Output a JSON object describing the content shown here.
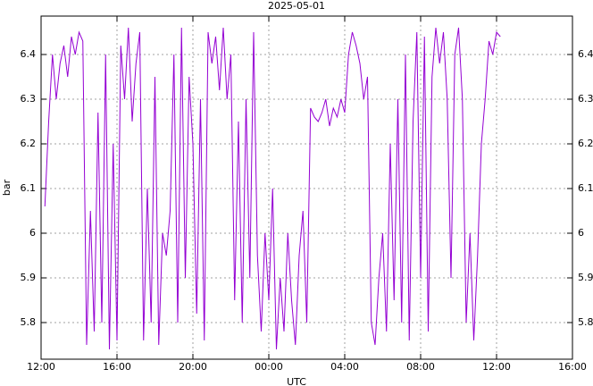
{
  "chart_data": {
    "type": "line",
    "title": "2025-05-01",
    "xlabel": "UTC",
    "ylabel": "bar",
    "xlim": [
      0,
      28
    ],
    "ylim": [
      5.718,
      6.486
    ],
    "xticks": [
      {
        "value": 0,
        "label": "12:00"
      },
      {
        "value": 4,
        "label": "16:00"
      },
      {
        "value": 8,
        "label": "20:00"
      },
      {
        "value": 12,
        "label": "00:00"
      },
      {
        "value": 16,
        "label": "04:00"
      },
      {
        "value": 20,
        "label": "08:00"
      },
      {
        "value": 24,
        "label": "12:00"
      },
      {
        "value": 28,
        "label": "16:00"
      }
    ],
    "yticks": [
      5.8,
      5.9,
      6,
      6.1,
      6.2,
      6.3,
      6.4
    ],
    "grid": true,
    "x": [
      0.2,
      0.4,
      0.6,
      0.8,
      1.0,
      1.2,
      1.4,
      1.6,
      1.8,
      2.0,
      2.2,
      2.4,
      2.6,
      2.8,
      3.0,
      3.2,
      3.4,
      3.6,
      3.8,
      4.0,
      4.2,
      4.4,
      4.6,
      4.8,
      5.0,
      5.2,
      5.4,
      5.6,
      5.8,
      6.0,
      6.2,
      6.4,
      6.6,
      6.8,
      7.0,
      7.2,
      7.4,
      7.6,
      7.8,
      8.0,
      8.2,
      8.4,
      8.6,
      8.8,
      9.0,
      9.2,
      9.4,
      9.6,
      9.8,
      10.0,
      10.2,
      10.4,
      10.6,
      10.8,
      11.0,
      11.2,
      11.4,
      11.6,
      11.8,
      12.0,
      12.2,
      12.4,
      12.6,
      12.8,
      13.0,
      13.2,
      13.4,
      13.6,
      13.8,
      14.0,
      14.2,
      14.4,
      14.6,
      14.8,
      15.0,
      15.2,
      15.4,
      15.6,
      15.8,
      16.0,
      16.2,
      16.4,
      16.6,
      16.8,
      17.0,
      17.2,
      17.4,
      17.6,
      17.8,
      18.0,
      18.2,
      18.4,
      18.6,
      18.8,
      19.0,
      19.2,
      19.4,
      19.6,
      19.8,
      20.0,
      20.2,
      20.4,
      20.6,
      20.8,
      21.0,
      21.2,
      21.4,
      21.6,
      21.8,
      22.0,
      22.2,
      22.4,
      22.6,
      22.8,
      23.0,
      23.2,
      23.4,
      23.6,
      23.8,
      24.0,
      24.2
    ],
    "series": [
      {
        "color": "#9400d3",
        "values": [
          6.06,
          6.25,
          6.4,
          6.3,
          6.38,
          6.42,
          6.35,
          6.44,
          6.4,
          6.45,
          6.43,
          5.75,
          6.05,
          5.78,
          6.27,
          5.8,
          6.4,
          5.74,
          6.2,
          5.76,
          6.42,
          6.3,
          6.46,
          6.25,
          6.38,
          6.45,
          5.76,
          6.1,
          5.8,
          6.35,
          5.75,
          6.0,
          5.95,
          6.05,
          6.4,
          5.8,
          6.46,
          5.9,
          6.35,
          6.2,
          5.82,
          6.3,
          5.76,
          6.45,
          6.38,
          6.44,
          6.32,
          6.46,
          6.3,
          6.4,
          5.85,
          6.25,
          5.8,
          6.3,
          5.9,
          6.45,
          5.95,
          5.78,
          6.0,
          5.85,
          6.1,
          5.74,
          5.9,
          5.78,
          6.0,
          5.85,
          5.75,
          5.95,
          6.05,
          5.8,
          6.28,
          6.26,
          6.25,
          6.27,
          6.3,
          6.24,
          6.28,
          6.26,
          6.3,
          6.27,
          6.4,
          6.45,
          6.42,
          6.38,
          6.3,
          6.35,
          5.8,
          5.75,
          5.9,
          6.0,
          5.78,
          6.2,
          5.85,
          6.3,
          5.8,
          6.4,
          5.76,
          6.25,
          6.45,
          5.9,
          6.44,
          5.78,
          6.35,
          6.46,
          6.38,
          6.45,
          6.3,
          5.9,
          6.4,
          6.46,
          6.3,
          5.8,
          6.0,
          5.76,
          5.95,
          6.2,
          6.3,
          6.43,
          6.4,
          6.45,
          6.44
        ]
      }
    ]
  }
}
